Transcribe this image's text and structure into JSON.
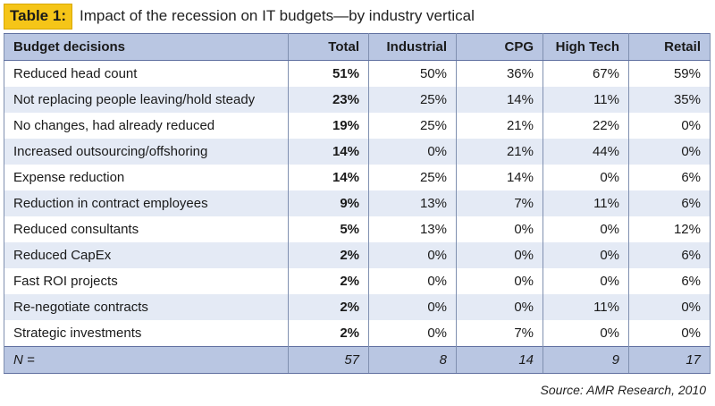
{
  "caption": {
    "label": "Table 1:",
    "text": "Impact of the recession on IT budgets—by industry vertical"
  },
  "table": {
    "headers": [
      "Budget decisions",
      "Total",
      "Industrial",
      "CPG",
      "High Tech",
      "Retail"
    ],
    "rows": [
      [
        "Reduced head count",
        "51%",
        "50%",
        "36%",
        "67%",
        "59%"
      ],
      [
        "Not replacing people leaving/hold steady",
        "23%",
        "25%",
        "14%",
        "11%",
        "35%"
      ],
      [
        "No changes, had already reduced",
        "19%",
        "25%",
        "21%",
        "22%",
        "0%"
      ],
      [
        "Increased outsourcing/offshoring",
        "14%",
        "0%",
        "21%",
        "44%",
        "0%"
      ],
      [
        "Expense reduction",
        "14%",
        "25%",
        "14%",
        "0%",
        "6%"
      ],
      [
        "Reduction in contract employees",
        "9%",
        "13%",
        "7%",
        "11%",
        "6%"
      ],
      [
        "Reduced consultants",
        "5%",
        "13%",
        "0%",
        "0%",
        "12%"
      ],
      [
        "Reduced CapEx",
        "2%",
        "0%",
        "0%",
        "0%",
        "6%"
      ],
      [
        "Fast ROI projects",
        "2%",
        "0%",
        "0%",
        "0%",
        "6%"
      ],
      [
        "Re-negotiate contracts",
        "2%",
        "0%",
        "0%",
        "11%",
        "0%"
      ],
      [
        "Strategic investments",
        "2%",
        "0%",
        "7%",
        "0%",
        "0%"
      ]
    ],
    "footer": [
      "N =",
      "57",
      "8",
      "14",
      "9",
      "17"
    ]
  },
  "source": "Source: AMR Research, 2010"
}
